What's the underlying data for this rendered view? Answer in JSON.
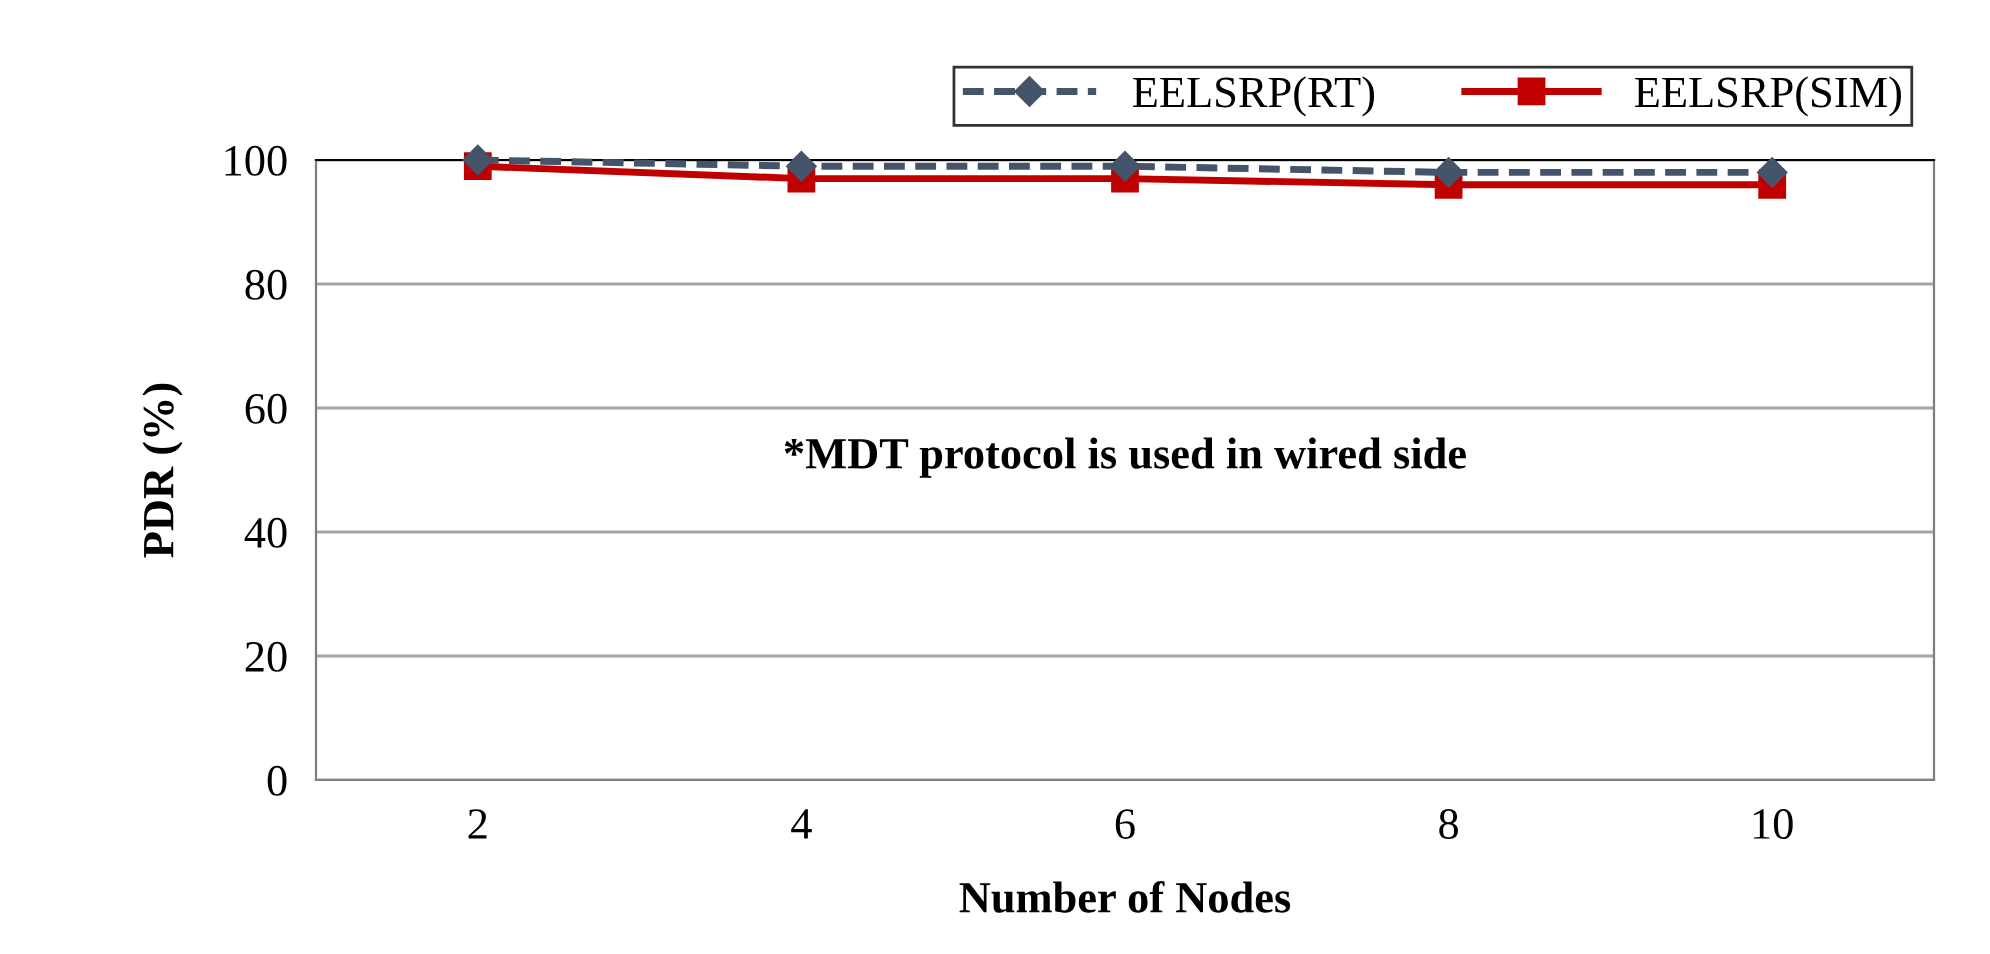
{
  "chart_data": {
    "type": "line",
    "xlabel": "Number of Nodes",
    "ylabel": "PDR (%)",
    "categories": [
      "2",
      "4",
      "6",
      "8",
      "10"
    ],
    "series": [
      {
        "name": "EELSRP(RT)",
        "color": "#44546a",
        "values": [
          100,
          99,
          99,
          98,
          98
        ],
        "marker": "diamond",
        "line_style": "dashed"
      },
      {
        "name": "EELSRP(SIM)",
        "color": "#c00000",
        "values": [
          99,
          97,
          97,
          96,
          96
        ],
        "marker": "square",
        "line_style": "solid"
      }
    ],
    "ylim": [
      0,
      100
    ],
    "yticks": [
      0,
      20,
      40,
      60,
      80,
      100
    ],
    "grid": "y",
    "legend": "top right",
    "annotations": [
      "*MDT protocol is used in wired side"
    ]
  }
}
